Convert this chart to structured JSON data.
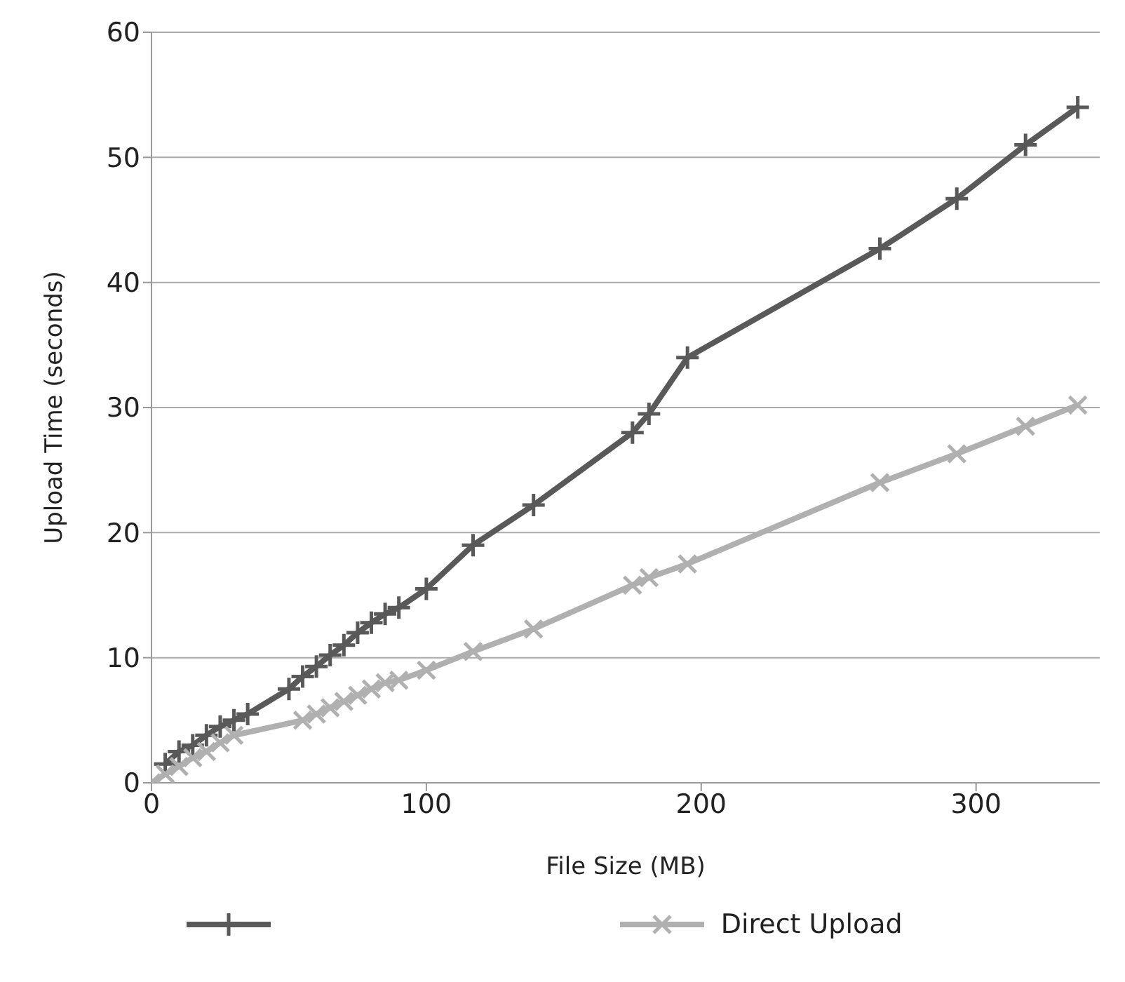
{
  "chart_data": {
    "type": "line",
    "xlabel": "File Size (MB)",
    "ylabel": "Upload Time (seconds)",
    "xlim": [
      0,
      345
    ],
    "ylim": [
      0,
      60
    ],
    "xticks": [
      0,
      100,
      200,
      300
    ],
    "yticks": [
      0,
      10,
      20,
      30,
      40,
      50,
      60
    ],
    "grid": "y",
    "legend": "bottom",
    "line_style": "solid",
    "series": [
      {
        "color": "#595959",
        "marker": "plus",
        "x": [
          5,
          10,
          15,
          20,
          25,
          30,
          35,
          50,
          55,
          60,
          65,
          70,
          75,
          80,
          85,
          90,
          100,
          117,
          139,
          175,
          181,
          195,
          265,
          293,
          318,
          337
        ],
        "values": [
          1.5,
          2.5,
          3,
          3.8,
          4.5,
          5,
          5.5,
          7.5,
          8.5,
          9.3,
          10.2,
          11,
          12,
          12.8,
          13.5,
          14,
          15.5,
          19,
          22.2,
          28,
          29.5,
          34,
          42.7,
          46.7,
          51,
          54
        ]
      },
      {
        "name": "Direct Upload",
        "color": "#b0b0b0",
        "marker": "cross",
        "x": [
          0,
          5,
          10,
          15,
          20,
          25,
          30,
          55,
          60,
          65,
          70,
          75,
          80,
          85,
          90,
          100,
          117,
          139,
          175,
          181,
          195,
          265,
          293,
          318,
          337
        ],
        "values": [
          0,
          0.7,
          1.3,
          2,
          2.5,
          3.2,
          3.8,
          5,
          5.5,
          6,
          6.5,
          7,
          7.5,
          8,
          8.2,
          9,
          10.5,
          12.3,
          15.8,
          16.4,
          17.5,
          24,
          26.3,
          28.5,
          30.2
        ]
      }
    ]
  }
}
